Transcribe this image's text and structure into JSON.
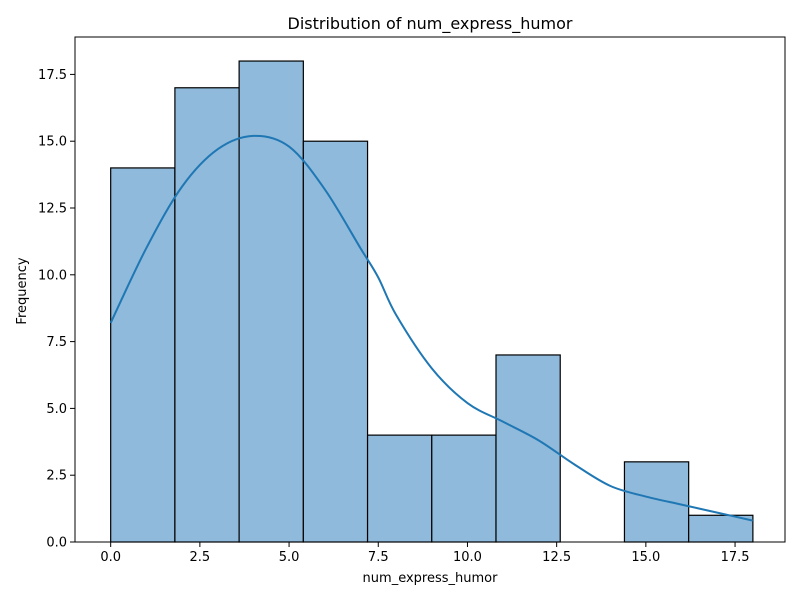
{
  "chart_data": {
    "type": "bar",
    "title": "Distribution of num_express_humor",
    "xlabel": "num_express_humor",
    "ylabel": "Frequency",
    "bin_edges": [
      0,
      1.8,
      3.6,
      5.4,
      7.2,
      9.0,
      10.8,
      12.6,
      14.4,
      16.2,
      18.0
    ],
    "values": [
      14,
      17,
      18,
      15,
      4,
      4,
      7,
      0,
      3,
      1
    ],
    "xlim": [
      -1.0,
      18.9
    ],
    "ylim": [
      0,
      18.9
    ],
    "xticks": [
      0.0,
      2.5,
      5.0,
      7.5,
      10.0,
      12.5,
      15.0,
      17.5
    ],
    "xtick_labels": [
      "0.0",
      "2.5",
      "5.0",
      "7.5",
      "10.0",
      "12.5",
      "15.0",
      "17.5"
    ],
    "yticks": [
      0.0,
      2.5,
      5.0,
      7.5,
      10.0,
      12.5,
      15.0,
      17.5
    ],
    "ytick_labels": [
      "0.0",
      "2.5",
      "5.0",
      "7.5",
      "10.0",
      "12.5",
      "15.0",
      "17.5"
    ],
    "grid": false,
    "bar_color": "#8fbadb",
    "bar_edge_color": "#000000",
    "kde": {
      "color": "#1f77b4",
      "x": [
        0,
        1,
        2,
        3,
        4,
        5,
        6,
        7,
        7.5,
        8,
        9,
        10,
        11,
        12,
        13,
        14,
        15,
        16,
        17,
        18
      ],
      "y": [
        8.2,
        11.0,
        13.3,
        14.7,
        15.2,
        14.8,
        13.2,
        11.0,
        9.9,
        8.5,
        6.5,
        5.2,
        4.5,
        3.8,
        2.9,
        2.1,
        1.7,
        1.4,
        1.1,
        0.8
      ]
    }
  }
}
